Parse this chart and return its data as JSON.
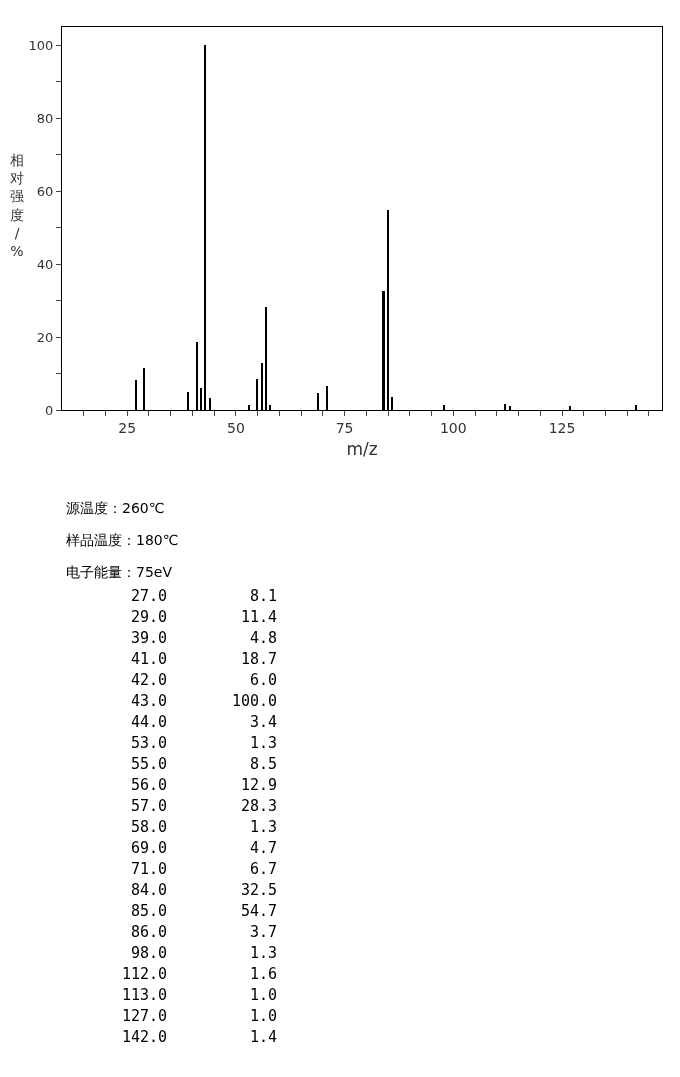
{
  "chart_data": {
    "type": "bar",
    "xlabel": "m/z",
    "ylabel": "相对强度/%",
    "x": [
      27.0,
      29.0,
      39.0,
      41.0,
      42.0,
      43.0,
      44.0,
      53.0,
      55.0,
      56.0,
      57.0,
      58.0,
      69.0,
      71.0,
      84.0,
      85.0,
      86.0,
      98.0,
      112.0,
      113.0,
      127.0,
      142.0
    ],
    "values": [
      8.1,
      11.4,
      4.8,
      18.7,
      6.0,
      100.0,
      3.4,
      1.3,
      8.5,
      12.9,
      28.3,
      1.3,
      4.7,
      6.7,
      32.5,
      54.7,
      3.7,
      1.3,
      1.6,
      1.0,
      1.0,
      1.4
    ],
    "color": "#000000",
    "xlim": [
      10,
      148
    ],
    "xticks": [
      {
        "value": 15,
        "label": null
      },
      {
        "value": 20,
        "label": null
      },
      25,
      {
        "value": 30,
        "label": null
      },
      {
        "value": 35,
        "label": null
      },
      {
        "value": 40,
        "label": null
      },
      {
        "value": 45,
        "label": null
      },
      50,
      {
        "value": 55,
        "label": null
      },
      {
        "value": 60,
        "label": null
      },
      {
        "value": 65,
        "label": null
      },
      {
        "value": 70,
        "label": null
      },
      75,
      {
        "value": 80,
        "label": null
      },
      {
        "value": 85,
        "label": null
      },
      {
        "value": 90,
        "label": null
      },
      {
        "value": 95,
        "label": null
      },
      100,
      {
        "value": 105,
        "label": null
      },
      {
        "value": 110,
        "label": null
      },
      {
        "value": 115,
        "label": null
      },
      {
        "value": 120,
        "label": null
      },
      125,
      {
        "value": 130,
        "label": null
      },
      {
        "value": 135,
        "label": null
      },
      {
        "value": 140,
        "label": null
      },
      {
        "value": 145,
        "label": null
      }
    ],
    "ylim": [
      0,
      105
    ],
    "yticks": [
      0,
      {
        "value": 10,
        "label": null
      },
      20,
      {
        "value": 30,
        "label": null
      },
      40,
      {
        "value": 50,
        "label": null
      },
      60,
      {
        "value": 70,
        "label": null
      },
      80,
      {
        "value": 90,
        "label": null
      },
      100
    ],
    "annotations": [
      "源温度：260℃",
      "样品温度：180℃",
      "电子能量：75eV",
      "27.0",
      "8.1",
      "29.0",
      "11.4",
      "39.0",
      "4.8",
      "41.0",
      "18.7",
      "42.0",
      "6.0",
      "43.0",
      "100.0",
      "44.0",
      "3.4",
      "53.0",
      "1.3",
      "55.0",
      "8.5",
      "56.0",
      "12.9",
      "57.0",
      "28.3",
      "58.0",
      "1.3",
      "69.0",
      "4.7",
      "71.0",
      "6.7",
      "84.0",
      "32.5",
      "85.0",
      "54.7",
      "86.0",
      "3.7",
      "98.0",
      "1.3",
      "112.0",
      "1.6",
      "113.0",
      "1.0",
      "127.0",
      "1.0",
      "142.0",
      "1.4"
    ]
  }
}
